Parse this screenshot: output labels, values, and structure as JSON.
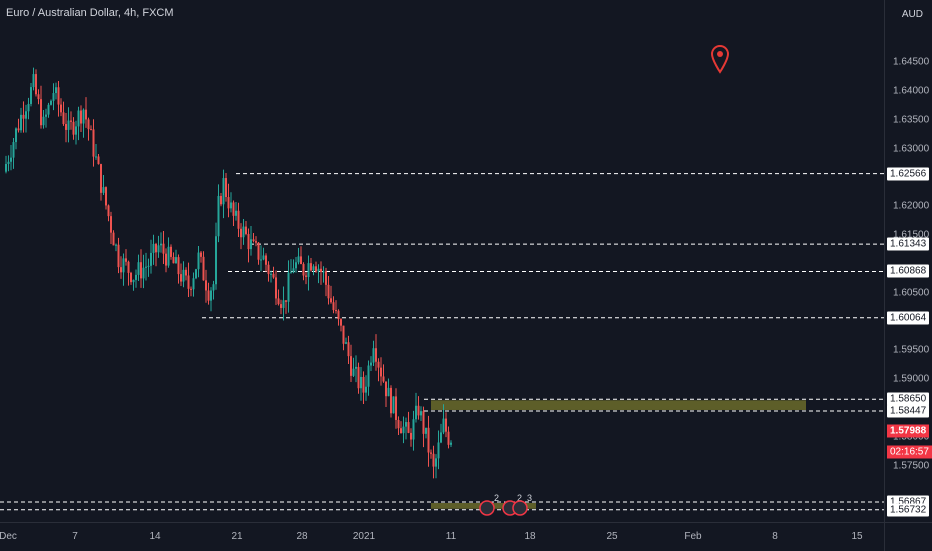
{
  "title": "Euro / Australian Dollar, 4h, FXCM",
  "currency_label": "AUD",
  "colors": {
    "background": "#131722",
    "up": "#26a69a",
    "down": "#ef5350",
    "zone": "#6b6b2a",
    "current_price": "#f23645",
    "marker": "#e53935"
  },
  "chart_data": {
    "type": "candlestick",
    "title": "Euro / Australian Dollar, 4h, FXCM",
    "ylabel": "AUD",
    "ylim": [
      1.5652,
      1.6558
    ],
    "price_ticks": [
      "1.64500",
      "1.64000",
      "1.63500",
      "1.63000",
      "1.62000",
      "1.61500",
      "1.60500",
      "1.59500",
      "1.59000",
      "1.58000",
      "1.57500"
    ],
    "time_ticks": [
      "Dec",
      "7",
      "14",
      "21",
      "28",
      "2021",
      "11",
      "18",
      "25",
      "Feb",
      "8",
      "15"
    ],
    "horizontal_levels": [
      "1.62566",
      "1.61343",
      "1.60868",
      "1.60064",
      "1.58650",
      "1.58447",
      "1.56867",
      "1.56732"
    ],
    "zones": [
      {
        "top": 1.5865,
        "bottom": 1.58447
      },
      {
        "top": 1.56867,
        "bottom": 1.56732
      }
    ],
    "current_price": "1.57988",
    "countdown": "02:16:57",
    "anchors": [
      {
        "t": 0,
        "p": 1.626
      },
      {
        "t": 8,
        "p": 1.637
      },
      {
        "t": 12,
        "p": 1.641
      },
      {
        "t": 16,
        "p": 1.634
      },
      {
        "t": 20,
        "p": 1.64
      },
      {
        "t": 26,
        "p": 1.633
      },
      {
        "t": 32,
        "p": 1.637
      },
      {
        "t": 36,
        "p": 1.63
      },
      {
        "t": 40,
        "p": 1.622
      },
      {
        "t": 46,
        "p": 1.611
      },
      {
        "t": 52,
        "p": 1.608
      },
      {
        "t": 58,
        "p": 1.61
      },
      {
        "t": 62,
        "p": 1.613
      },
      {
        "t": 68,
        "p": 1.61
      },
      {
        "t": 74,
        "p": 1.606
      },
      {
        "t": 78,
        "p": 1.611
      },
      {
        "t": 82,
        "p": 1.6055
      },
      {
        "t": 84,
        "p": 1.6065
      },
      {
        "t": 86,
        "p": 1.62
      },
      {
        "t": 88,
        "p": 1.624
      },
      {
        "t": 92,
        "p": 1.618
      },
      {
        "t": 96,
        "p": 1.6155
      },
      {
        "t": 100,
        "p": 1.6125
      },
      {
        "t": 104,
        "p": 1.611
      },
      {
        "t": 108,
        "p": 1.607
      },
      {
        "t": 112,
        "p": 1.603
      },
      {
        "t": 116,
        "p": 1.61
      },
      {
        "t": 120,
        "p": 1.609
      },
      {
        "t": 124,
        "p": 1.611
      },
      {
        "t": 128,
        "p": 1.608
      },
      {
        "t": 132,
        "p": 1.602
      },
      {
        "t": 136,
        "p": 1.597
      },
      {
        "t": 140,
        "p": 1.591
      },
      {
        "t": 144,
        "p": 1.588
      },
      {
        "t": 146,
        "p": 1.592
      },
      {
        "t": 148,
        "p": 1.597
      },
      {
        "t": 150,
        "p": 1.593
      },
      {
        "t": 154,
        "p": 1.587
      },
      {
        "t": 158,
        "p": 1.583
      },
      {
        "t": 162,
        "p": 1.58
      },
      {
        "t": 164,
        "p": 1.582
      },
      {
        "t": 166,
        "p": 1.585
      },
      {
        "t": 170,
        "p": 1.578
      },
      {
        "t": 172,
        "p": 1.574
      },
      {
        "t": 174,
        "p": 1.578
      },
      {
        "t": 176,
        "p": 1.582
      },
      {
        "t": 178,
        "p": 1.58
      }
    ]
  },
  "event_badges": [
    "2",
    "2",
    "3"
  ]
}
